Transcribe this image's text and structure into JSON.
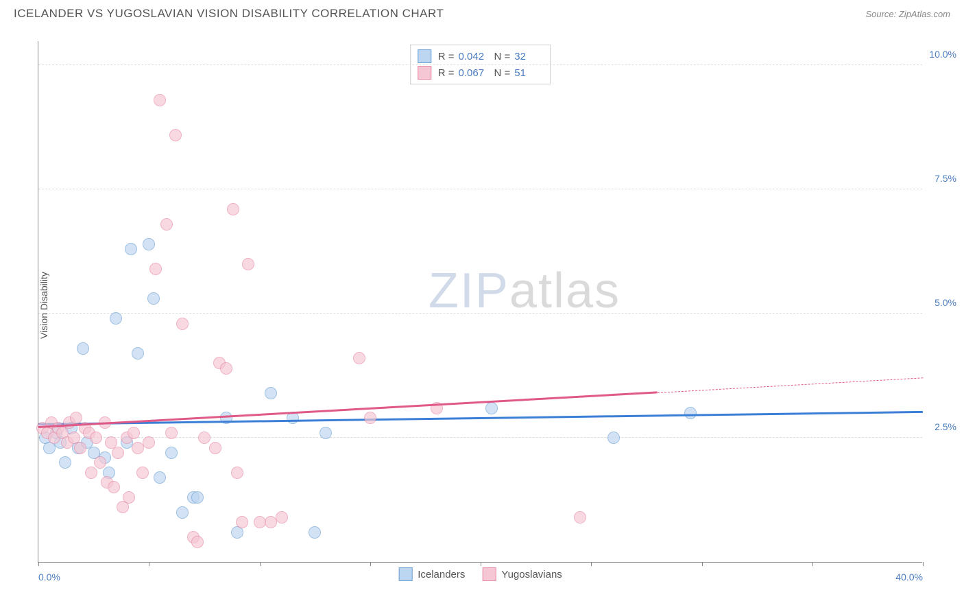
{
  "title": "ICELANDER VS YUGOSLAVIAN VISION DISABILITY CORRELATION CHART",
  "source": "Source: ZipAtlas.com",
  "y_axis_label": "Vision Disability",
  "watermark": {
    "part1": "ZIP",
    "part2": "atlas"
  },
  "chart": {
    "type": "scatter",
    "xlim": [
      0,
      40
    ],
    "ylim": [
      0,
      10.5
    ],
    "x_ticks": [
      0,
      5,
      10,
      15,
      20,
      25,
      30,
      35,
      40
    ],
    "x_tick_labels": {
      "0": "0.0%",
      "40": "40.0%"
    },
    "y_ticks": [
      2.5,
      5.0,
      7.5,
      10.0
    ],
    "y_tick_labels": [
      "2.5%",
      "5.0%",
      "7.5%",
      "10.0%"
    ],
    "grid_color": "#dddddd",
    "axis_color": "#888888",
    "background_color": "#ffffff",
    "point_radius": 9,
    "point_opacity": 0.65,
    "series": [
      {
        "name": "Icelanders",
        "fill": "#bcd5f0",
        "stroke": "#6a9fd4",
        "trend_color": "#3a7fd5",
        "r_value": "0.042",
        "n_value": "32",
        "trend": {
          "x1": 0,
          "y1": 2.75,
          "x2": 40,
          "y2": 3.0,
          "solid_until": 40
        },
        "points": [
          [
            0.3,
            2.5
          ],
          [
            0.5,
            2.3
          ],
          [
            0.8,
            2.6
          ],
          [
            1.0,
            2.4
          ],
          [
            1.2,
            2.0
          ],
          [
            1.5,
            2.7
          ],
          [
            1.8,
            2.3
          ],
          [
            2.0,
            4.3
          ],
          [
            2.2,
            2.4
          ],
          [
            2.5,
            2.2
          ],
          [
            3.0,
            2.1
          ],
          [
            3.2,
            1.8
          ],
          [
            3.5,
            4.9
          ],
          [
            4.0,
            2.4
          ],
          [
            4.2,
            6.3
          ],
          [
            4.5,
            4.2
          ],
          [
            5.0,
            6.4
          ],
          [
            5.2,
            5.3
          ],
          [
            5.5,
            1.7
          ],
          [
            6.0,
            2.2
          ],
          [
            6.5,
            1.0
          ],
          [
            7.0,
            1.3
          ],
          [
            7.2,
            1.3
          ],
          [
            8.5,
            2.9
          ],
          [
            9.0,
            0.6
          ],
          [
            10.5,
            3.4
          ],
          [
            11.5,
            2.9
          ],
          [
            12.5,
            0.6
          ],
          [
            13.0,
            2.6
          ],
          [
            20.5,
            3.1
          ],
          [
            26.0,
            2.5
          ],
          [
            29.5,
            3.0
          ]
        ]
      },
      {
        "name": "Yugoslavians",
        "fill": "#f5c6d3",
        "stroke": "#e68aa5",
        "trend_color": "#e05a87",
        "r_value": "0.067",
        "n_value": "51",
        "trend": {
          "x1": 0,
          "y1": 2.7,
          "x2": 40,
          "y2": 3.7,
          "solid_until": 28
        },
        "points": [
          [
            0.2,
            2.7
          ],
          [
            0.4,
            2.6
          ],
          [
            0.6,
            2.8
          ],
          [
            0.7,
            2.5
          ],
          [
            0.9,
            2.7
          ],
          [
            1.1,
            2.6
          ],
          [
            1.3,
            2.4
          ],
          [
            1.4,
            2.8
          ],
          [
            1.6,
            2.5
          ],
          [
            1.7,
            2.9
          ],
          [
            1.9,
            2.3
          ],
          [
            2.1,
            2.7
          ],
          [
            2.3,
            2.6
          ],
          [
            2.4,
            1.8
          ],
          [
            2.6,
            2.5
          ],
          [
            2.8,
            2.0
          ],
          [
            3.0,
            2.8
          ],
          [
            3.1,
            1.6
          ],
          [
            3.3,
            2.4
          ],
          [
            3.4,
            1.5
          ],
          [
            3.6,
            2.2
          ],
          [
            3.8,
            1.1
          ],
          [
            4.0,
            2.5
          ],
          [
            4.1,
            1.3
          ],
          [
            4.3,
            2.6
          ],
          [
            4.5,
            2.3
          ],
          [
            4.7,
            1.8
          ],
          [
            5.0,
            2.4
          ],
          [
            5.3,
            5.9
          ],
          [
            5.5,
            9.3
          ],
          [
            5.8,
            6.8
          ],
          [
            6.0,
            2.6
          ],
          [
            6.2,
            8.6
          ],
          [
            6.5,
            4.8
          ],
          [
            7.0,
            0.5
          ],
          [
            7.2,
            0.4
          ],
          [
            7.5,
            2.5
          ],
          [
            8.0,
            2.3
          ],
          [
            8.2,
            4.0
          ],
          [
            8.5,
            3.9
          ],
          [
            8.8,
            7.1
          ],
          [
            9.0,
            1.8
          ],
          [
            9.2,
            0.8
          ],
          [
            9.5,
            6.0
          ],
          [
            10.0,
            0.8
          ],
          [
            10.5,
            0.8
          ],
          [
            11.0,
            0.9
          ],
          [
            14.5,
            4.1
          ],
          [
            15.0,
            2.9
          ],
          [
            18.0,
            3.1
          ],
          [
            24.5,
            0.9
          ]
        ]
      }
    ]
  },
  "stats_labels": {
    "r": "R =",
    "n": "N ="
  },
  "legend_labels": [
    "Icelanders",
    "Yugoslavians"
  ]
}
